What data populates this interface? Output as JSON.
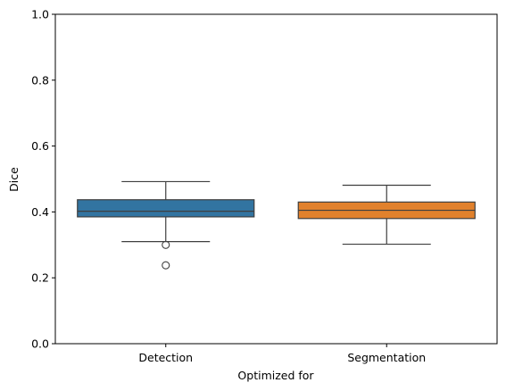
{
  "chart_data": {
    "type": "box",
    "xlabel": "Optimized for",
    "ylabel": "Dice",
    "ylim": [
      0.0,
      1.0
    ],
    "yticks": [
      0.0,
      0.2,
      0.4,
      0.6,
      0.8,
      1.0
    ],
    "ytick_labels": [
      "0.0",
      "0.2",
      "0.4",
      "0.6",
      "0.8",
      "1.0"
    ],
    "categories": [
      "Detection",
      "Segmentation"
    ],
    "boxes": [
      {
        "category": "Detection",
        "color": "#3274a1",
        "whisker_low": 0.31,
        "q1": 0.385,
        "median": 0.402,
        "q3": 0.437,
        "whisker_high": 0.492,
        "outliers": [
          0.3,
          0.238
        ]
      },
      {
        "category": "Segmentation",
        "color": "#e1812c",
        "whisker_low": 0.302,
        "q1": 0.38,
        "median": 0.405,
        "q3": 0.43,
        "whisker_high": 0.481,
        "outliers": []
      }
    ],
    "grid": false,
    "legend": "none"
  }
}
